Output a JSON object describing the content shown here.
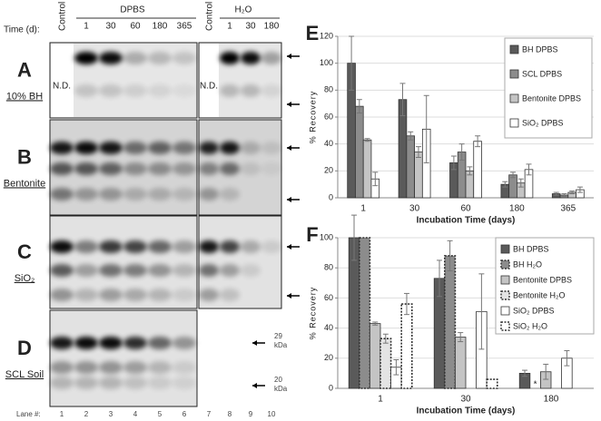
{
  "blots": {
    "time_label": "Time (d):",
    "control_labels": [
      "Control",
      "Control"
    ],
    "dpbs_header": "DPBS",
    "h2o_header": "H₂O",
    "dpbs_times": [
      "1",
      "30",
      "60",
      "180",
      "365"
    ],
    "h2o_times": [
      "1",
      "30",
      "180"
    ],
    "panels": [
      {
        "letter": "A",
        "label": "10% BH"
      },
      {
        "letter": "B",
        "label": "Bentonite"
      },
      {
        "letter": "C",
        "label": "SiO₂"
      },
      {
        "letter": "D",
        "label": "SCL Soil"
      }
    ],
    "nd": [
      "N.D.",
      "N.D."
    ],
    "markers": [
      {
        "size": "29",
        "unit": "kDa"
      },
      {
        "size": "20",
        "unit": "kDa"
      }
    ],
    "lane_label": "Lane #:",
    "lanes": [
      "1",
      "2",
      "3",
      "4",
      "5",
      "6",
      "7",
      "8",
      "9",
      "10"
    ]
  },
  "chart_data": [
    {
      "type": "bar",
      "title": "E",
      "x_label": "Incubation Time (days)",
      "y_label": "% Recovery",
      "categories": [
        "1",
        "30",
        "60",
        "180",
        "365"
      ],
      "ylim": [
        0,
        120
      ],
      "yticks": [
        0,
        20,
        40,
        60,
        80,
        100,
        120
      ],
      "grid": true,
      "series": [
        {
          "name": "BH DPBS",
          "color": "#5a5a5a",
          "style": "solid",
          "values": [
            100,
            73,
            26,
            10,
            3
          ],
          "errors": [
            20,
            12,
            5,
            2,
            1
          ]
        },
        {
          "name": "SCL DPBS",
          "color": "#8c8c8c",
          "style": "solid",
          "values": [
            68,
            46,
            34,
            17,
            2
          ],
          "errors": [
            5,
            3,
            6,
            2,
            1
          ]
        },
        {
          "name": "Bentonite DPBS",
          "color": "#c4c4c4",
          "style": "solid",
          "values": [
            43,
            34,
            20,
            11,
            4
          ],
          "errors": [
            1,
            4,
            3,
            3,
            1
          ]
        },
        {
          "name": "SiO₂ DPBS",
          "color": "#ffffff",
          "style": "solid",
          "values": [
            14,
            51,
            42,
            21,
            6
          ],
          "errors": [
            5,
            25,
            4,
            4,
            2
          ]
        }
      ]
    },
    {
      "type": "bar",
      "title": "F",
      "x_label": "Incubation Time (days)",
      "y_label": "% Recovery",
      "categories": [
        "1",
        "30",
        "180"
      ],
      "ylim": [
        0,
        100
      ],
      "yticks": [
        0,
        20,
        40,
        60,
        80,
        100
      ],
      "grid": true,
      "annotation": "*",
      "series": [
        {
          "name": "BH DPBS",
          "color": "#5a5a5a",
          "style": "solid",
          "values": [
            100,
            73,
            10
          ],
          "errors": [
            15,
            12,
            2
          ]
        },
        {
          "name": "BH H₂O",
          "color": "#8c8c8c",
          "style": "dotted",
          "values": [
            100,
            88,
            null
          ],
          "errors": [
            0,
            10,
            null
          ]
        },
        {
          "name": "Bentonite DPBS",
          "color": "#c4c4c4",
          "style": "solid",
          "values": [
            43,
            34,
            11
          ],
          "errors": [
            1,
            3,
            5
          ]
        },
        {
          "name": "Bentonite H₂O",
          "color": "#e4e4e4",
          "style": "dotted",
          "values": [
            33,
            0,
            0
          ],
          "errors": [
            3,
            0,
            0
          ]
        },
        {
          "name": "SiO₂ DPBS",
          "color": "#ffffff",
          "style": "solid",
          "values": [
            14,
            51,
            20
          ],
          "errors": [
            5,
            25,
            5
          ]
        },
        {
          "name": "SiO₂ H₂O",
          "color": "#ffffff",
          "style": "dotted",
          "values": [
            56,
            6,
            0
          ],
          "errors": [
            7,
            0,
            0
          ]
        }
      ]
    }
  ]
}
